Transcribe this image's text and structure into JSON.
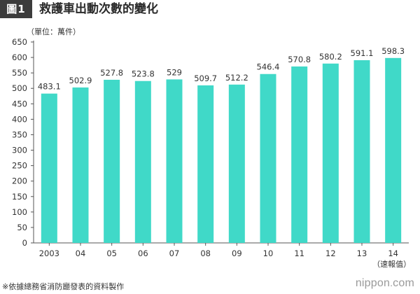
{
  "header": {
    "figure_label": "圖1",
    "title": "救護車出動次數的變化"
  },
  "chart_data": {
    "type": "bar",
    "unit_label": "（單位：萬件）",
    "categories": [
      "2003",
      "04",
      "05",
      "06",
      "07",
      "08",
      "09",
      "10",
      "11",
      "12",
      "13",
      "14"
    ],
    "values": [
      483.1,
      502.9,
      527.8,
      523.8,
      529,
      509.7,
      512.2,
      546.4,
      570.8,
      580.2,
      591.1,
      598.3
    ],
    "value_labels": [
      "483.1",
      "502.9",
      "527.8",
      "523.8",
      "529",
      "509.7",
      "512.2",
      "546.4",
      "570.8",
      "580.2",
      "591.1",
      "598.3"
    ],
    "category_notes": [
      "",
      "",
      "",
      "",
      "",
      "",
      "",
      "",
      "",
      "",
      "",
      "（速報值）"
    ],
    "ylim": [
      0,
      650
    ],
    "yticks": [
      0,
      50,
      100,
      150,
      200,
      250,
      300,
      350,
      400,
      450,
      500,
      550,
      600,
      650
    ],
    "grid": false,
    "colors": {
      "bar": "#40d9c8",
      "axis": "#555555",
      "text": "#333333"
    }
  },
  "footer": {
    "source_note": "※依據總務省消防廳發表的資料製作",
    "brand_name": "nippon",
    "brand_sep": ".",
    "brand_tld": "com"
  }
}
